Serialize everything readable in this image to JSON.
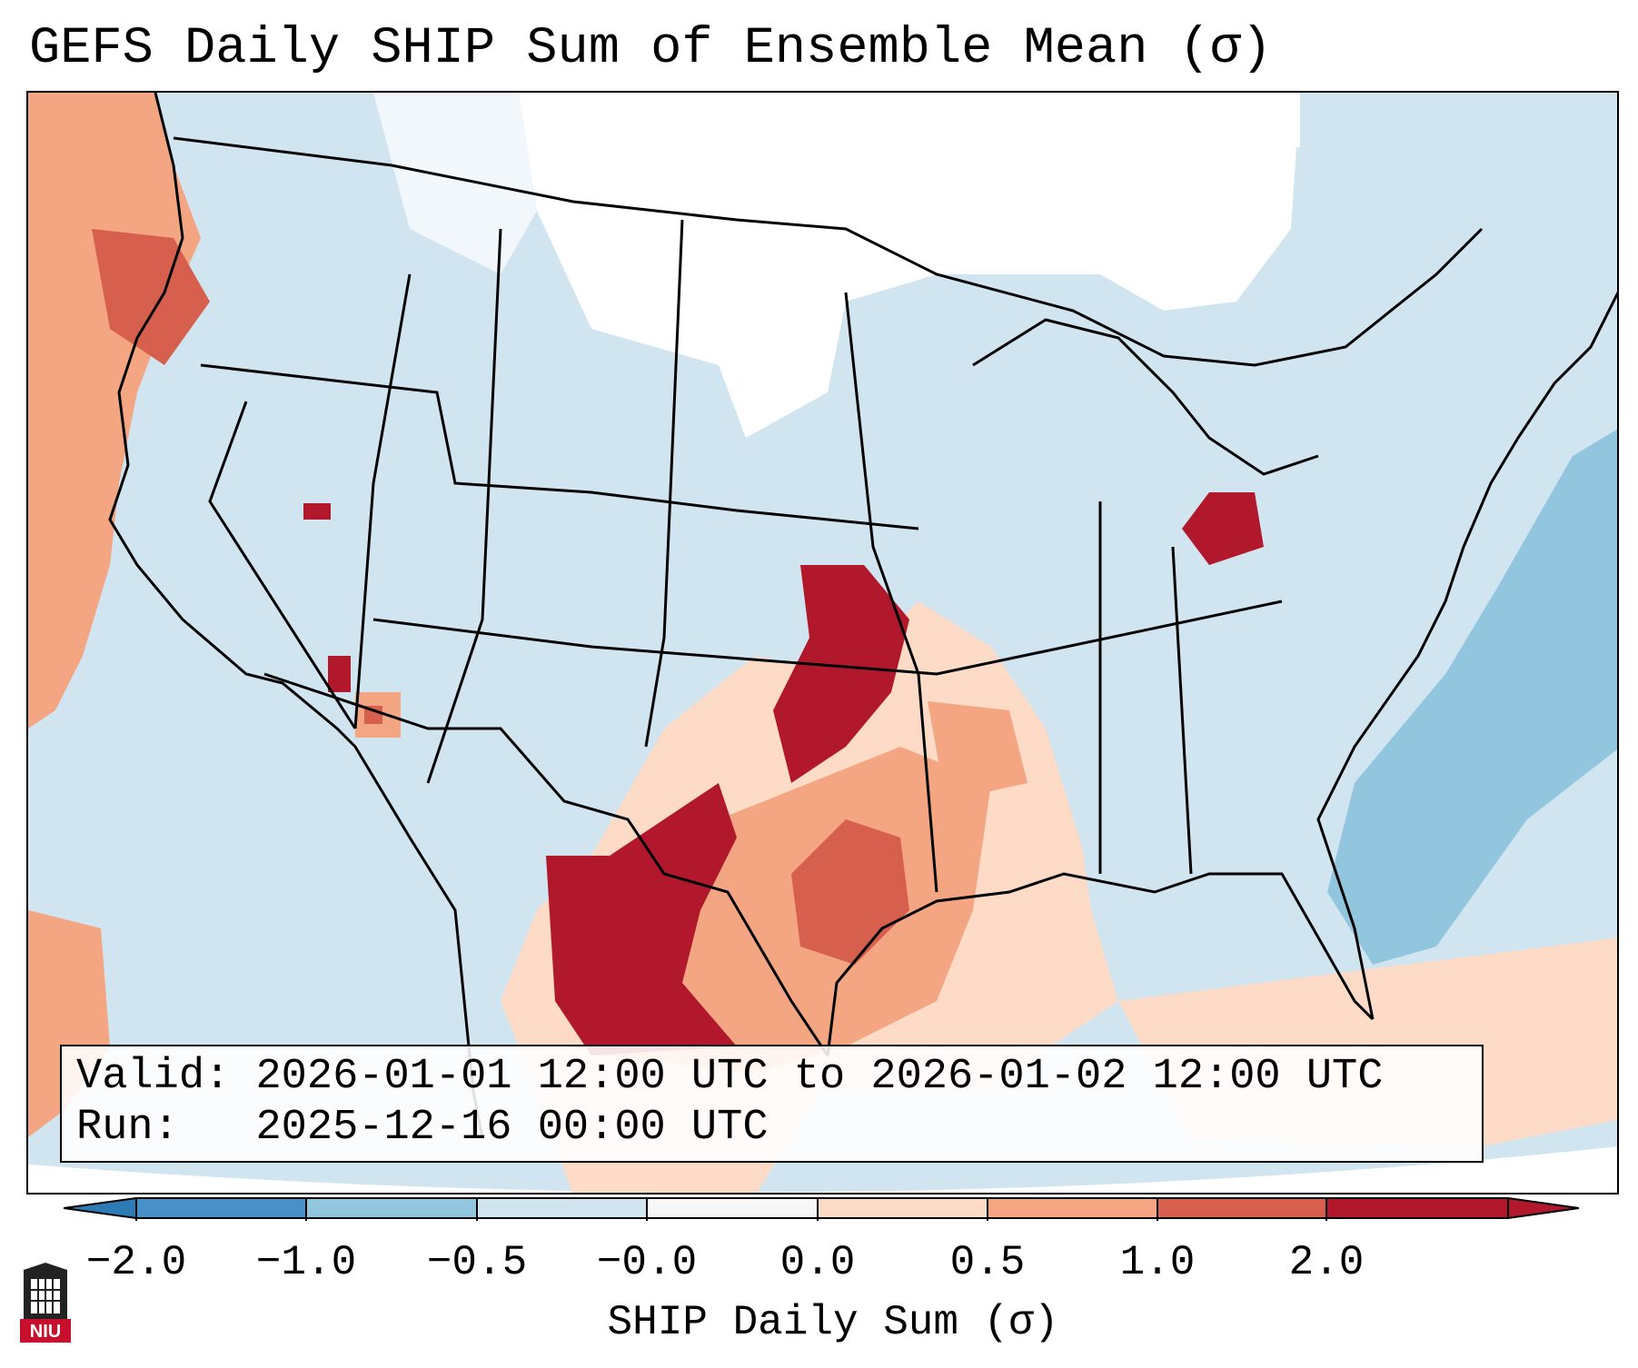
{
  "title": "GEFS Daily SHIP Sum of Ensemble Mean (σ)",
  "info": {
    "valid_label": "Valid:",
    "valid_value": "2026-01-01 12:00 UTC to 2026-01-02 12:00 UTC",
    "run_label": "Run:",
    "run_value": "2025-12-16 00:00 UTC"
  },
  "colorbar": {
    "label": "SHIP Daily Sum (σ)",
    "ticks": [
      "−2.0",
      "−1.0",
      "−0.5",
      "−0.0",
      "0.0",
      "0.5",
      "1.0",
      "2.0"
    ],
    "colors": [
      "#2c7bb6",
      "#4a90c8",
      "#92c5de",
      "#d1e5f0",
      "#f7f7f7",
      "#fddbc7",
      "#f4a582",
      "#d6604d",
      "#b2182b"
    ]
  },
  "logo": {
    "text": "NIU"
  }
}
